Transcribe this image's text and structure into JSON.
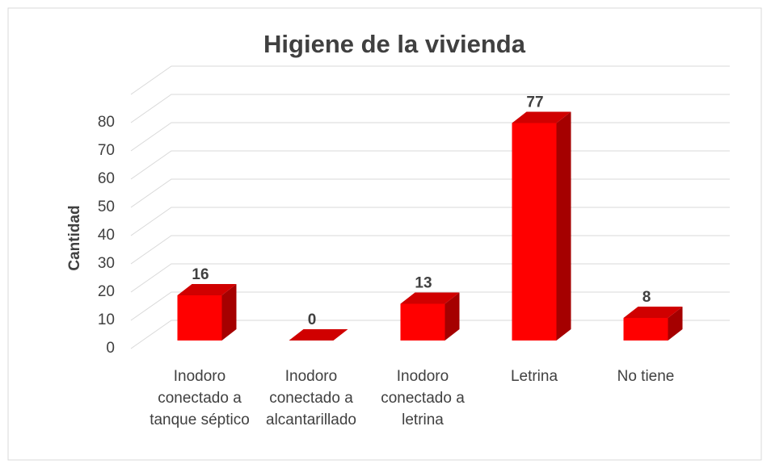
{
  "chart_data": {
    "type": "bar3d",
    "title": "Higiene de la vivienda",
    "y_label": "Cantidad",
    "categories": [
      "Inodoro conectado a tanque séptico",
      "Inodoro conectado a alcantarillado",
      "Inodoro conectado a letrina",
      "Letrina",
      "No tiene"
    ],
    "values": [
      16,
      0,
      13,
      77,
      8
    ],
    "color": "#ff0000",
    "ylim": [
      0,
      90
    ],
    "yticks": [
      0,
      10,
      20,
      30,
      40,
      50,
      60,
      70,
      80
    ],
    "grid": true
  }
}
